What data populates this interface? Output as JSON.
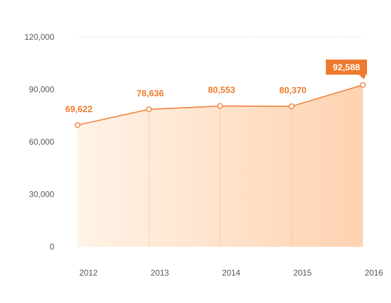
{
  "chart_data": {
    "type": "area",
    "categories": [
      "2012",
      "2013",
      "2014",
      "2015",
      "2016"
    ],
    "series": [
      {
        "values": [
          69622,
          78636,
          80553,
          80370,
          92588
        ]
      }
    ],
    "data_labels": [
      "69,622",
      "78,636",
      "80,553",
      "80,370",
      "92,588"
    ],
    "highlighted_index": 4,
    "y_ticks": [
      0,
      30000,
      60000,
      90000,
      120000
    ],
    "y_tick_labels": [
      "0",
      "30,000",
      "60,000",
      "90,000",
      "120,000"
    ],
    "ylim": [
      0,
      120000
    ],
    "grid": "dotted line at top tick; dotted drop lines at each data point",
    "title": "",
    "xlabel": "",
    "ylabel": ""
  },
  "colors": {
    "accent": "#ee7a2e",
    "area_light": "#fff3e7",
    "area_dark": "#ffd2b0",
    "grid": "#bdbdbd",
    "axis_text": "#555555"
  }
}
